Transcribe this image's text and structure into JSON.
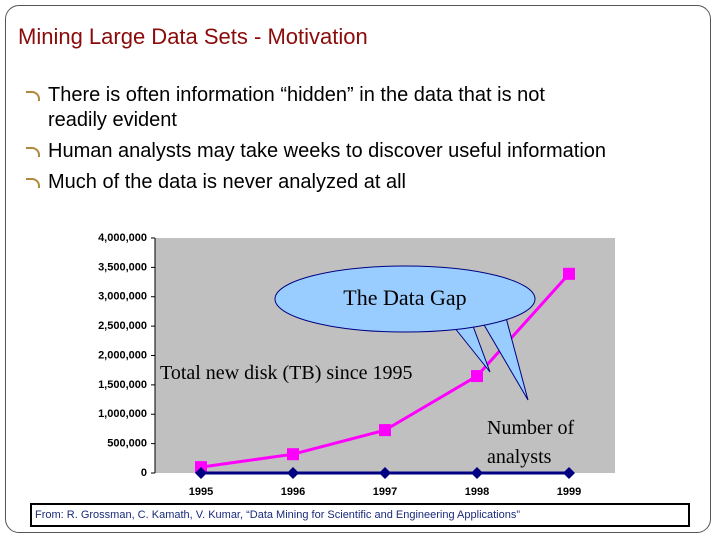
{
  "slide_title": "Mining Large Data Sets - Motivation",
  "bullets": [
    "There is often information “hidden” in the data that is not readily evident",
    "Human analysts may take weeks to discover useful information",
    "Much of the data is never analyzed at all"
  ],
  "chart_data": {
    "type": "line",
    "categories": [
      "1995",
      "1996",
      "1997",
      "1998",
      "1999"
    ],
    "series": [
      {
        "name": "Total new disk (TB) since 1995",
        "color": "#ff00ff",
        "marker": "square",
        "values": [
          100000,
          320000,
          730000,
          1650000,
          3390000
        ]
      },
      {
        "name": "Number of analysts",
        "color": "#000080",
        "marker": "diamond",
        "values": [
          0,
          0,
          0,
          0,
          0
        ]
      }
    ],
    "ylim": [
      0,
      4000000
    ],
    "yticks": [
      0,
      {
        "value": 500000,
        "label": "500,000"
      },
      {
        "value": 1000000,
        "label": "1,000,000"
      },
      {
        "value": 1500000,
        "label": "1,500,000"
      },
      {
        "value": 2000000,
        "label": "2,000,000"
      },
      {
        "value": 2500000,
        "label": "2,500,000"
      },
      {
        "value": 3000000,
        "label": "3,000,000"
      },
      {
        "value": 3500000,
        "label": "3,500,000"
      },
      {
        "value": 4000000,
        "label": "4,000,000"
      }
    ],
    "grid": false,
    "annotation": "The Data Gap"
  },
  "source": "From: R. Grossman, C. Kamath, V. Kumar, “Data Mining for Scientific and Engineering Applications”"
}
